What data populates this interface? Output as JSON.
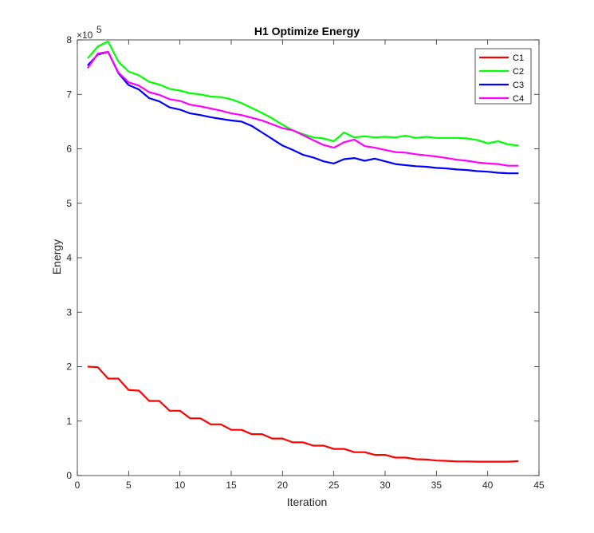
{
  "chart_data": {
    "type": "line",
    "title": "H1 Optimize Energy",
    "xlabel": "Iteration",
    "ylabel": "Energy",
    "xlim": [
      0,
      45
    ],
    "ylim": [
      0,
      800000
    ],
    "xticks": [
      0,
      5,
      10,
      15,
      20,
      25,
      30,
      35,
      40,
      45
    ],
    "yticks": [
      0,
      1,
      2,
      3,
      4,
      5,
      6,
      7,
      8
    ],
    "xtick_labels": [
      "0",
      "5",
      "10",
      "15",
      "20",
      "25",
      "30",
      "35",
      "40",
      "45"
    ],
    "ytick_labels": [
      "0",
      "1",
      "2",
      "3",
      "4",
      "5",
      "6",
      "7",
      "8"
    ],
    "y_exponent_label": "×10",
    "y_exponent_power": "5",
    "grid": false,
    "legend_position": "top-right",
    "x": [
      1,
      2,
      3,
      4,
      5,
      6,
      7,
      8,
      9,
      10,
      11,
      12,
      13,
      14,
      15,
      16,
      17,
      18,
      19,
      20,
      21,
      22,
      23,
      24,
      25,
      26,
      27,
      28,
      29,
      30,
      31,
      32,
      33,
      34,
      35,
      36,
      37,
      38,
      39,
      40,
      41,
      42,
      43
    ],
    "series": [
      {
        "name": "C1",
        "color": "#ff0000",
        "values": [
          200000,
          199000,
          178000,
          178000,
          157000,
          156000,
          137000,
          137000,
          119000,
          119000,
          105000,
          105000,
          94000,
          94000,
          84000,
          84000,
          76000,
          76000,
          68000,
          68000,
          61000,
          61000,
          55000,
          55000,
          49000,
          49000,
          43000,
          43000,
          38000,
          38000,
          33000,
          33000,
          30000,
          29500,
          27500,
          27000,
          26000,
          26000,
          25500,
          25500,
          25500,
          25500,
          26500
        ]
      },
      {
        "name": "C2",
        "color": "#00ff00",
        "values": [
          766000,
          788000,
          797000,
          760000,
          742000,
          735000,
          723000,
          718000,
          710000,
          707000,
          702000,
          700000,
          696000,
          695000,
          691000,
          684000,
          675000,
          666000,
          656000,
          644000,
          634000,
          627000,
          621000,
          619000,
          614000,
          630000,
          621000,
          623000,
          621000,
          622000,
          621000,
          624000,
          620000,
          622000,
          620000,
          620000,
          620000,
          619000,
          616000,
          610000,
          614000,
          608000,
          606000
        ]
      },
      {
        "name": "C3",
        "color": "#0000ff",
        "values": [
          753000,
          773000,
          778000,
          739000,
          717000,
          709000,
          693000,
          687000,
          676000,
          672000,
          665000,
          662000,
          658000,
          655000,
          652000,
          650000,
          642000,
          630000,
          618000,
          606000,
          598000,
          589000,
          584000,
          577000,
          573000,
          581000,
          583000,
          578000,
          582000,
          577000,
          572000,
          570000,
          568000,
          567000,
          565000,
          564000,
          562000,
          561000,
          559000,
          558000,
          556000,
          555000,
          555000
        ]
      },
      {
        "name": "C4",
        "color": "#ff00ff",
        "values": [
          748000,
          775000,
          778000,
          740000,
          722000,
          716000,
          704000,
          699000,
          691000,
          688000,
          681000,
          678000,
          674000,
          670000,
          665000,
          662000,
          657000,
          652000,
          645000,
          638000,
          634000,
          625000,
          616000,
          607000,
          602000,
          612000,
          617000,
          605000,
          602000,
          598000,
          594000,
          593000,
          590000,
          588000,
          586000,
          583000,
          580000,
          578000,
          575000,
          573000,
          572000,
          569000,
          569000
        ]
      }
    ]
  }
}
